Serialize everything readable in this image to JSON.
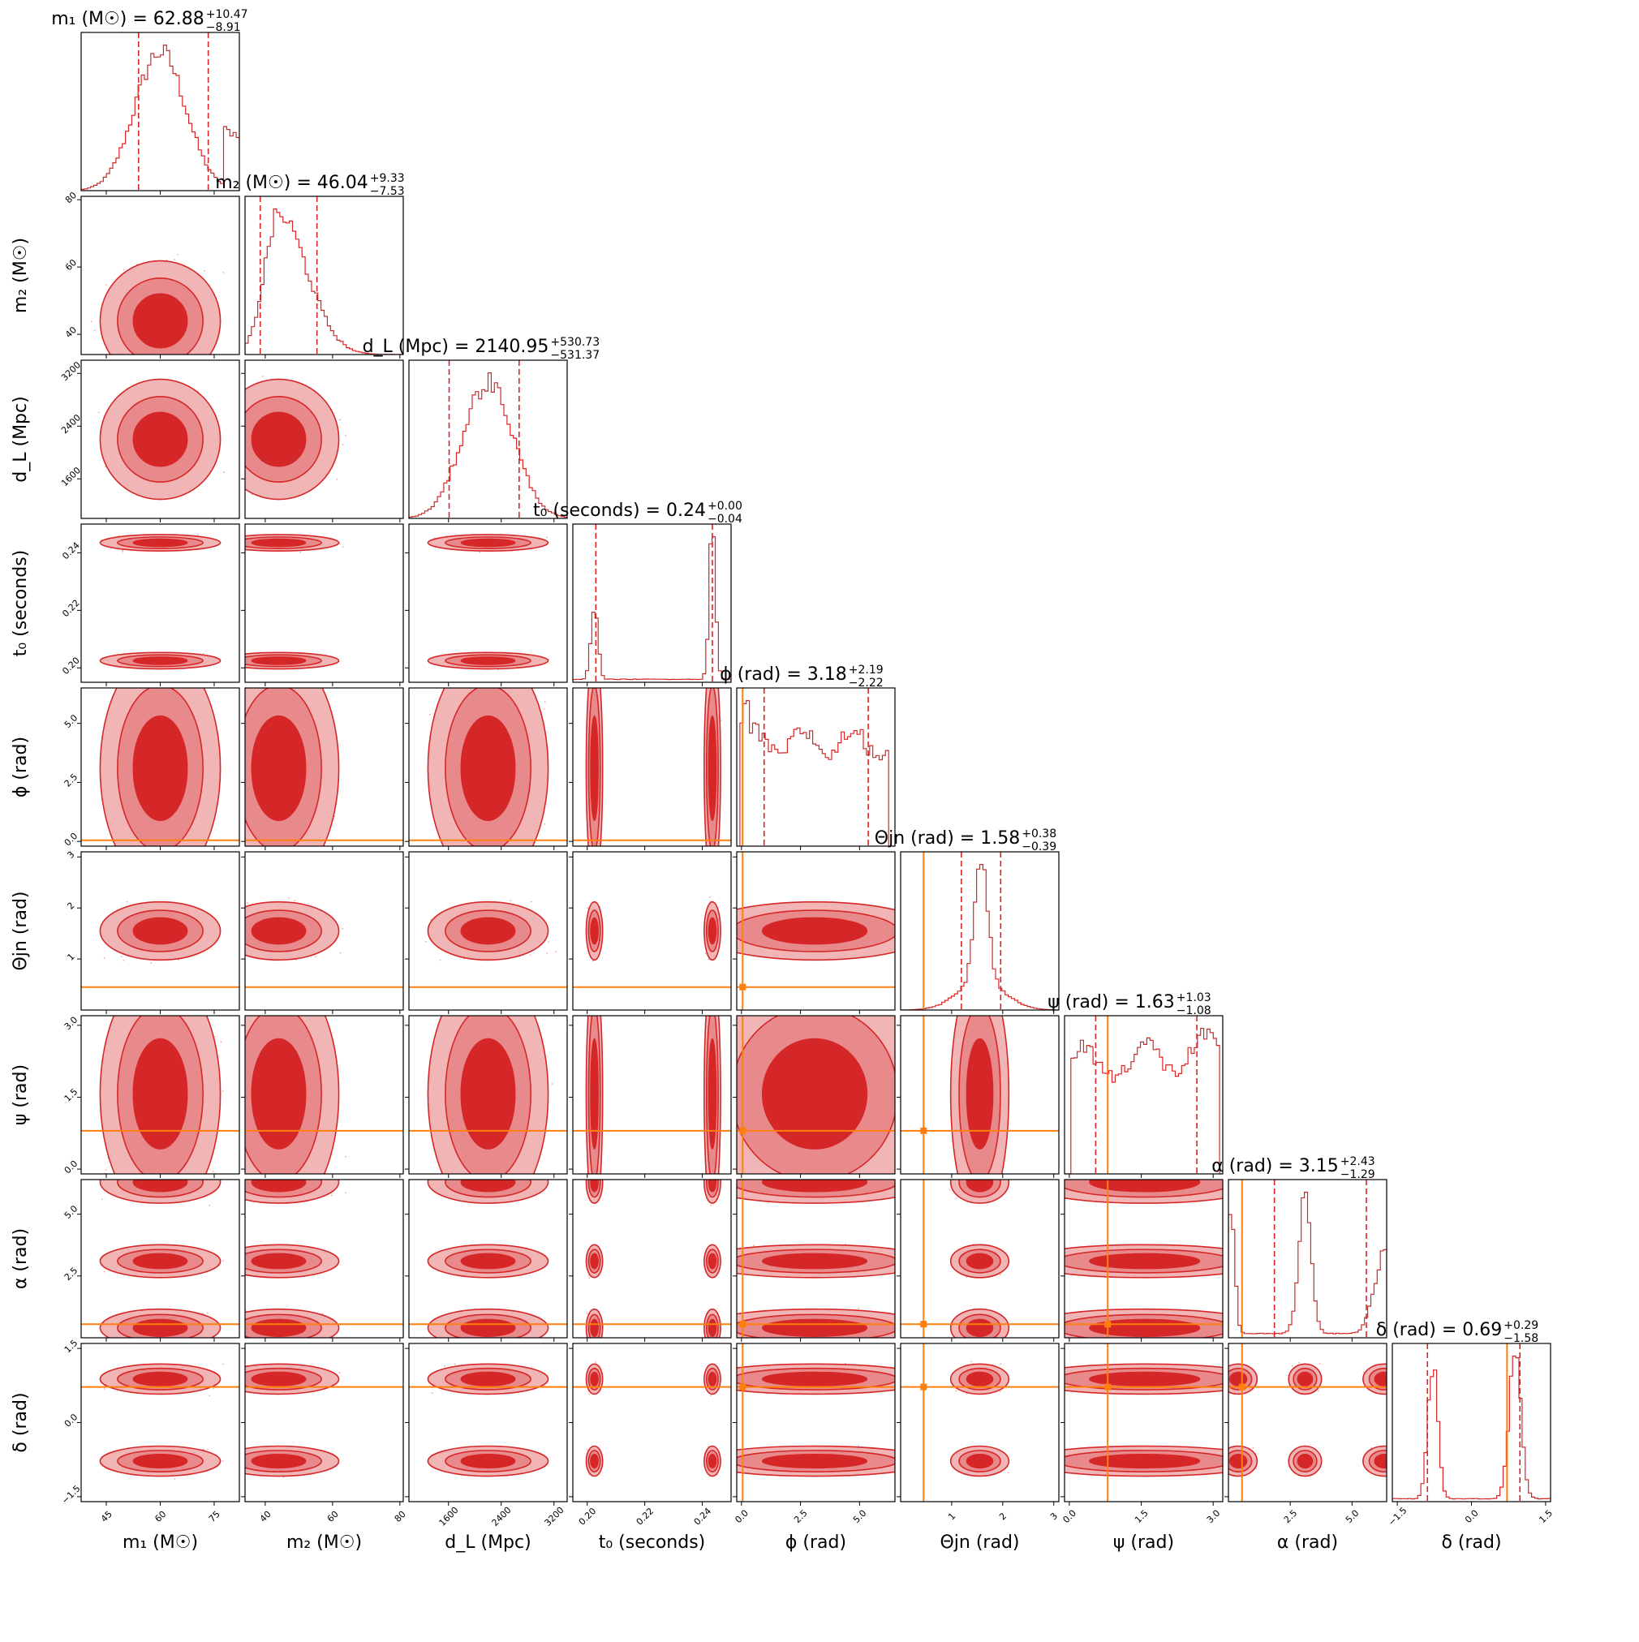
{
  "chart_data": {
    "type": "corner",
    "series_color": "#d62728",
    "truth_color": "#ff7f0e",
    "params": [
      {
        "key": "m1",
        "label": "m₁ (M☉)",
        "title": "m₁ (M☉) = 62.88",
        "sup": "+10.47",
        "sub": "−8.91",
        "range": [
          38,
          82
        ],
        "ticks": [
          45,
          60,
          75
        ],
        "tick_labels": [
          "45",
          "60",
          "75"
        ],
        "median": 62.88,
        "q_low": 53.97,
        "q_high": 73.35,
        "truth": null,
        "hist": "unimodal",
        "hist_peak": 60
      },
      {
        "key": "m2",
        "label": "m₂ (M☉)",
        "title": "m₂ (M☉) = 46.04",
        "sup": "+9.33",
        "sub": "−7.53",
        "range": [
          34,
          81
        ],
        "ticks": [
          40,
          60,
          80
        ],
        "tick_labels": [
          "40",
          "60",
          "80"
        ],
        "median": 46.04,
        "q_low": 38.51,
        "q_high": 55.37,
        "truth": null,
        "hist": "skewed",
        "hist_peak": 44
      },
      {
        "key": "dL",
        "label": "d_L (Mpc)",
        "title": "d_L (Mpc) = 2140.95",
        "sup": "+530.73",
        "sub": "−531.37",
        "range": [
          1000,
          3400
        ],
        "ticks": [
          1600,
          2400,
          3200
        ],
        "tick_labels": [
          "1600",
          "2400",
          "3200"
        ],
        "median": 2140.95,
        "q_low": 1609.58,
        "q_high": 2671.68,
        "truth": null,
        "hist": "unimodal",
        "hist_peak": 2200
      },
      {
        "key": "t0",
        "label": "t₀ (seconds)",
        "title": "t₀ (seconds) = 0.24",
        "sup": "+0.00",
        "sub": "−0.04",
        "range": [
          0.195,
          0.25
        ],
        "ticks": [
          0.2,
          0.22,
          0.24
        ],
        "tick_labels": [
          "0.20",
          "0.22",
          "0.24"
        ],
        "median": 0.24,
        "q_low": 0.203,
        "q_high": 0.2435,
        "truth": null,
        "hist": "bimodal_t0"
      },
      {
        "key": "phi",
        "label": "ϕ (rad)",
        "title": "ϕ (rad) = 3.18",
        "sup": "+2.19",
        "sub": "−2.22",
        "range": [
          -0.2,
          6.5
        ],
        "ticks": [
          0.0,
          2.5,
          5.0
        ],
        "tick_labels": [
          "0.0",
          "2.5",
          "5.0"
        ],
        "median": 3.18,
        "q_low": 0.96,
        "q_high": 5.37,
        "truth": 0.05,
        "hist": "flat_phi"
      },
      {
        "key": "theta",
        "label": "Θjn (rad)",
        "title": "Θjn (rad) = 1.58",
        "sup": "+0.38",
        "sub": "−0.39",
        "range": [
          0.0,
          3.1
        ],
        "ticks": [
          1,
          2,
          3
        ],
        "tick_labels": [
          "1",
          "2",
          "3"
        ],
        "median": 1.58,
        "q_low": 1.19,
        "q_high": 1.96,
        "truth": 0.45,
        "hist": "peaked",
        "hist_peak": 1.58
      },
      {
        "key": "psi",
        "label": "ψ (rad)",
        "title": "ψ (rad) = 1.63",
        "sup": "+1.03",
        "sub": "−1.08",
        "range": [
          -0.1,
          3.2
        ],
        "ticks": [
          0.0,
          1.5,
          3.0
        ],
        "tick_labels": [
          "0.0",
          "1.5",
          "3.0"
        ],
        "median": 1.63,
        "q_low": 0.55,
        "q_high": 2.66,
        "truth": 0.8,
        "hist": "flat_psi"
      },
      {
        "key": "alpha",
        "label": "α (rad)",
        "title": "α (rad) = 3.15",
        "sup": "+2.43",
        "sub": "−1.29",
        "range": [
          0.0,
          6.4
        ],
        "ticks": [
          2.5,
          5.0
        ],
        "tick_labels": [
          "2.5",
          "5.0"
        ],
        "median": 3.15,
        "q_low": 1.86,
        "q_high": 5.58,
        "truth": 0.55,
        "hist": "trimodal_alpha"
      },
      {
        "key": "delta",
        "label": "δ (rad)",
        "title": "δ (rad) = 0.69",
        "sup": "+0.29",
        "sub": "−1.58",
        "range": [
          -1.6,
          1.6
        ],
        "ticks": [
          -1.5,
          0.0,
          1.5
        ],
        "tick_labels": [
          "−1.5",
          "0.0",
          "1.5"
        ],
        "median": 0.69,
        "q_low": -0.89,
        "q_high": 0.98,
        "truth": 0.72,
        "hist": "bimodal_delta"
      }
    ]
  }
}
